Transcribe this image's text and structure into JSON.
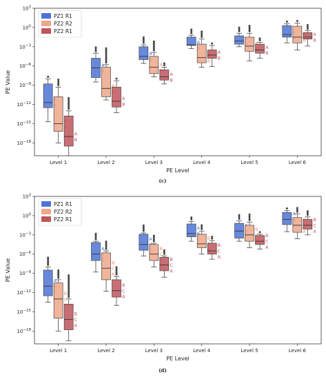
{
  "series_colors": [
    "#4e73d6",
    "#eea789",
    "#c0555c"
  ],
  "legend_labels": [
    "PZ1 R1",
    "PZ2 R2",
    "PZ2 R1"
  ],
  "chart_data": [
    {
      "type": "box",
      "caption": "(c)",
      "xlabel": "PE Level",
      "ylabel": "PE Value",
      "yscale": "log",
      "ylim": [
        1e-20,
        1000
      ],
      "yticks": [
        "10^3",
        "10^0",
        "10^-3",
        "10^-6",
        "10^-9",
        "10^-12",
        "10^-15",
        "10^-18"
      ],
      "categories": [
        "Level 1",
        "Level 2",
        "Level 3",
        "Level 4",
        "Level 5",
        "Level 6"
      ],
      "series": [
        {
          "name": "PZ1 R1",
          "boxes": [
            {
              "whislo": -14.7,
              "q1": -12.5,
              "med": -11.7,
              "q3": -8.8,
              "whishi": -8.0,
              "flierhi": -7.6,
              "letters": [
                "A",
                "B"
              ]
            },
            {
              "whislo": -8.5,
              "q1": -7.8,
              "med": -6.3,
              "q3": -4.8,
              "whishi": -4.0,
              "flierhi": -2.9,
              "letters": [
                "A",
                "B"
              ]
            },
            {
              "whislo": -5.6,
              "q1": -5.0,
              "med": -4.5,
              "q3": -3.0,
              "whishi": -2.7,
              "flierhi": -1.3,
              "letters": [
                "A",
                "B"
              ]
            },
            {
              "whislo": -3.3,
              "q1": -2.8,
              "med": -2.7,
              "q3": -1.5,
              "whishi": -1.2,
              "flierhi": -0.3,
              "letters": [
                "A",
                "B"
              ]
            },
            {
              "whislo": -3.0,
              "q1": -2.6,
              "med": -2.1,
              "q3": -1.3,
              "whishi": -0.9,
              "flierhi": 0.2,
              "letters": [
                "A",
                "B"
              ]
            },
            {
              "whislo": -2.4,
              "q1": -1.5,
              "med": -1.1,
              "q3": 0.3,
              "whishi": 0.6,
              "flierhi": 1.1,
              "letters": [
                "A",
                "B"
              ]
            }
          ]
        },
        {
          "name": "PZ2 R2",
          "boxes": [
            {
              "whislo": -18.0,
              "q1": -16.2,
              "med": -15.0,
              "q3": -10.8,
              "whishi": -9.3,
              "flierhi": -7.9,
              "letters": [
                "A",
                "A"
              ]
            },
            {
              "whislo": -11.3,
              "q1": -10.8,
              "med": -9.5,
              "q3": -6.2,
              "whishi": -5.8,
              "flierhi": -3.2,
              "letters": [
                "A",
                "A"
              ]
            },
            {
              "whislo": -7.7,
              "q1": -7.2,
              "med": -6.2,
              "q3": -4.5,
              "whishi": -3.9,
              "flierhi": -2.1,
              "letters": [
                "A",
                "A"
              ]
            },
            {
              "whislo": -6.2,
              "q1": -5.5,
              "med": -4.7,
              "q3": -2.6,
              "whishi": -1.8,
              "flierhi": -0.4,
              "letters": [
                "A",
                "B"
              ]
            },
            {
              "whislo": -5.2,
              "q1": -3.7,
              "med": -2.9,
              "q3": -1.5,
              "whishi": -0.9,
              "flierhi": 0.4,
              "letters": [
                "A",
                "A"
              ]
            },
            {
              "whislo": -3.5,
              "q1": -2.4,
              "med": -1.5,
              "q3": 0.2,
              "whishi": 0.7,
              "flierhi": 1.3,
              "letters": [
                "A",
                "A"
              ]
            }
          ]
        },
        {
          "name": "PZ2 R1",
          "boxes": [
            {
              "whislo": -20.0,
              "q1": -18.5,
              "med": -17.0,
              "q3": -13.8,
              "whishi": -13.0,
              "flierhi": -10.8,
              "letters": [
                "A",
                "B"
              ]
            },
            {
              "whislo": -13.3,
              "q1": -12.4,
              "med": -11.5,
              "q3": -9.3,
              "whishi": -8.3,
              "flierhi": -7.8,
              "letters": [
                "A",
                "B"
              ]
            },
            {
              "whislo": -8.8,
              "q1": -8.2,
              "med": -7.7,
              "q3": -6.6,
              "whishi": -6.2,
              "flierhi": -5.5,
              "letters": [
                "A",
                "B"
              ]
            },
            {
              "whislo": -6.1,
              "q1": -4.8,
              "med": -4.3,
              "q3": -3.5,
              "whishi": -2.8,
              "flierhi": -2.2,
              "letters": [
                "A",
                "B"
              ]
            },
            {
              "whislo": -4.8,
              "q1": -4.0,
              "med": -3.5,
              "q3": -2.6,
              "whishi": -2.3,
              "flierhi": -1.6,
              "letters": [
                "A",
                "B"
              ]
            },
            {
              "whislo": -2.9,
              "q1": -1.8,
              "med": -1.5,
              "q3": -0.8,
              "whishi": -0.5,
              "flierhi": 0.5,
              "letters": [
                "A",
                "B"
              ]
            }
          ]
        }
      ]
    },
    {
      "type": "box",
      "caption": "(d)",
      "xlabel": "PE Level",
      "ylabel": "PE Value",
      "yscale": "log",
      "ylim": [
        1e-20,
        1000
      ],
      "yticks": [
        "10^3",
        "10^0",
        "10^-3",
        "10^-6",
        "10^-9",
        "10^-12",
        "10^-15",
        "10^-18"
      ],
      "categories": [
        "Level 1",
        "Level 2",
        "Level 3",
        "Level 4",
        "Level 5",
        "Level 6"
      ],
      "series": [
        {
          "name": "PZ1 R1",
          "boxes": [
            {
              "whislo": -13.5,
              "q1": -12.5,
              "med": -11.0,
              "q3": -8.5,
              "whishi": -8.0,
              "flierhi": -6.5,
              "letters": [
                "A",
                "B",
                "C"
              ]
            },
            {
              "whislo": -8.8,
              "q1": -7.0,
              "med": -6.0,
              "q3": -4.2,
              "whishi": -4.0,
              "flierhi": -2.8,
              "letters": [
                "A",
                "B",
                "B"
              ]
            },
            {
              "whislo": -6.3,
              "q1": -5.4,
              "med": -4.5,
              "q3": -2.9,
              "whishi": -2.7,
              "flierhi": -1.5,
              "letters": [
                "A",
                "B",
                "C"
              ]
            },
            {
              "whislo": -4.0,
              "q1": -3.3,
              "med": -2.8,
              "q3": -1.3,
              "whishi": -0.9,
              "flierhi": -0.1,
              "letters": [
                "A",
                "B",
                "C"
              ]
            },
            {
              "whislo": -4.0,
              "q1": -3.5,
              "med": -2.4,
              "q3": -1.2,
              "whishi": -0.8,
              "flierhi": 0.2,
              "letters": [
                "A",
                "B",
                "C"
              ]
            },
            {
              "whislo": -2.5,
              "q1": -1.4,
              "med": -0.6,
              "q3": 0.5,
              "whishi": 0.8,
              "flierhi": 1.3,
              "letters": [
                "A",
                "B",
                "C"
              ]
            }
          ]
        },
        {
          "name": "PZ2 R2",
          "boxes": [
            {
              "whislo": -18.0,
              "q1": -16.0,
              "med": -13.0,
              "q3": -10.5,
              "whishi": -10.0,
              "flierhi": -8.5,
              "letters": [
                "B",
                "C",
                "A"
              ]
            },
            {
              "whislo": -11.8,
              "q1": -10.0,
              "med": -8.2,
              "q3": -5.8,
              "whishi": -5.5,
              "flierhi": -3.8,
              "letters": [
                "B",
                "C",
                "A"
              ]
            },
            {
              "whislo": -8.0,
              "q1": -7.0,
              "med": -6.0,
              "q3": -4.5,
              "whishi": -4.3,
              "flierhi": -3.1,
              "letters": [
                "B",
                "C",
                "A"
              ]
            },
            {
              "whislo": -6.0,
              "q1": -5.0,
              "med": -4.4,
              "q3": -2.9,
              "whishi": -2.4,
              "flierhi": -1.3,
              "letters": [
                "B",
                "C",
                "A"
              ]
            },
            {
              "whislo": -5.0,
              "q1": -4.0,
              "med": -3.0,
              "q3": -1.5,
              "whishi": -1.0,
              "flierhi": 0.2,
              "letters": [
                "B",
                "C",
                "A"
              ]
            },
            {
              "whislo": -3.6,
              "q1": -2.6,
              "med": -1.5,
              "q3": -0.3,
              "whishi": 0.3,
              "flierhi": 1.2,
              "letters": [
                "B",
                "C",
                "A"
              ]
            }
          ]
        },
        {
          "name": "PZ2 R1",
          "boxes": [
            {
              "whislo": -19.5,
              "q1": -17.8,
              "med": -16.2,
              "q3": -13.8,
              "whishi": -13.0,
              "flierhi": -9.2,
              "letters": [
                "B",
                "C",
                "A"
              ]
            },
            {
              "whislo": -14.0,
              "q1": -12.7,
              "med": -11.7,
              "q3": -10.0,
              "whishi": -9.5,
              "flierhi": -8.0,
              "letters": [
                "B",
                "C",
                "A"
              ]
            },
            {
              "whislo": -9.6,
              "q1": -8.6,
              "med": -7.7,
              "q3": -6.5,
              "whishi": -6.3,
              "flierhi": -5.3,
              "letters": [
                "B",
                "C",
                "A"
              ]
            },
            {
              "whislo": -6.8,
              "q1": -6.0,
              "med": -5.5,
              "q3": -4.3,
              "whishi": -3.9,
              "flierhi": -3.2,
              "letters": [
                "B",
                "C",
                "A"
              ]
            },
            {
              "whislo": -5.2,
              "q1": -4.5,
              "med": -4.0,
              "q3": -3.1,
              "whishi": -2.9,
              "flierhi": -2.3,
              "letters": [
                "B",
                "C",
                "A"
              ]
            },
            {
              "whislo": -3.0,
              "q1": -2.1,
              "med": -1.5,
              "q3": -0.6,
              "whishi": -0.2,
              "flierhi": 0.7,
              "letters": [
                "B",
                "C",
                "A"
              ]
            }
          ]
        }
      ]
    }
  ]
}
